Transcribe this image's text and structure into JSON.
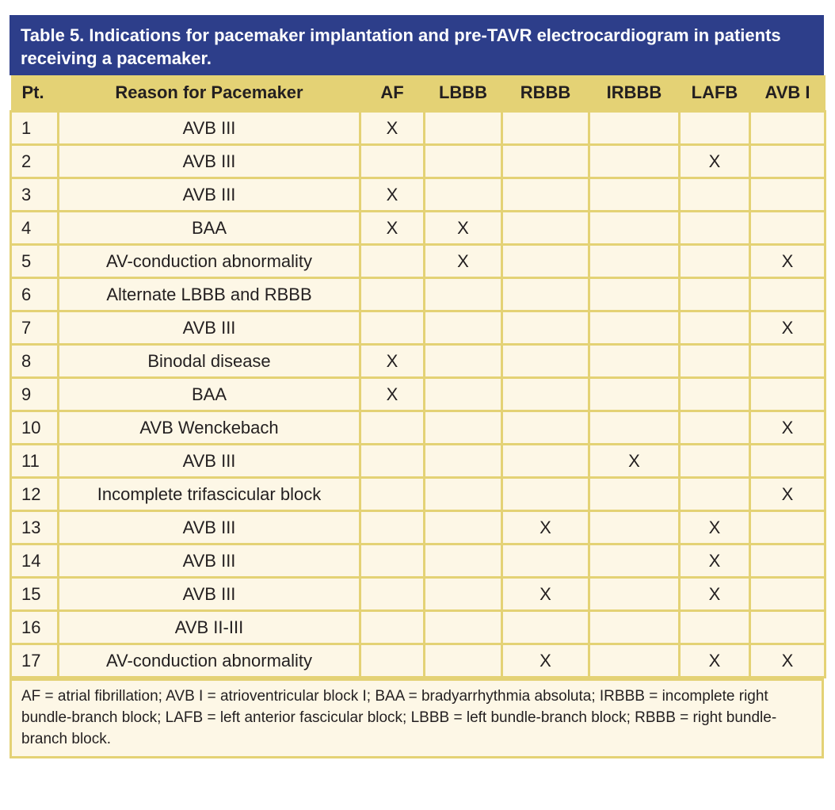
{
  "title": "Table 5. Indications for pacemaker implantation and pre-TAVR electrocardiogram in patients receiving a pacemaker.",
  "columns": [
    "Pt.",
    "Reason for Pacemaker",
    "AF",
    "LBBB",
    "RBBB",
    "IRBBB",
    "LAFB",
    "AVB I"
  ],
  "rows": [
    {
      "pt": "1",
      "reason": "AVB III",
      "af": "X",
      "lbbb": "",
      "rbbb": "",
      "irbbb": "",
      "lafb": "",
      "avb1": ""
    },
    {
      "pt": "2",
      "reason": "AVB III",
      "af": "",
      "lbbb": "",
      "rbbb": "",
      "irbbb": "",
      "lafb": "X",
      "avb1": ""
    },
    {
      "pt": "3",
      "reason": "AVB III",
      "af": "X",
      "lbbb": "",
      "rbbb": "",
      "irbbb": "",
      "lafb": "",
      "avb1": ""
    },
    {
      "pt": "4",
      "reason": "BAA",
      "af": "X",
      "lbbb": "X",
      "rbbb": "",
      "irbbb": "",
      "lafb": "",
      "avb1": ""
    },
    {
      "pt": "5",
      "reason": "AV-conduction abnormality",
      "af": "",
      "lbbb": "X",
      "rbbb": "",
      "irbbb": "",
      "lafb": "",
      "avb1": "X"
    },
    {
      "pt": "6",
      "reason": "Alternate LBBB and RBBB",
      "af": "",
      "lbbb": "",
      "rbbb": "",
      "irbbb": "",
      "lafb": "",
      "avb1": ""
    },
    {
      "pt": "7",
      "reason": "AVB III",
      "af": "",
      "lbbb": "",
      "rbbb": "",
      "irbbb": "",
      "lafb": "",
      "avb1": "X"
    },
    {
      "pt": "8",
      "reason": "Binodal disease",
      "af": "X",
      "lbbb": "",
      "rbbb": "",
      "irbbb": "",
      "lafb": "",
      "avb1": ""
    },
    {
      "pt": "9",
      "reason": "BAA",
      "af": "X",
      "lbbb": "",
      "rbbb": "",
      "irbbb": "",
      "lafb": "",
      "avb1": ""
    },
    {
      "pt": "10",
      "reason": "AVB Wenckebach",
      "af": "",
      "lbbb": "",
      "rbbb": "",
      "irbbb": "",
      "lafb": "",
      "avb1": "X"
    },
    {
      "pt": "11",
      "reason": "AVB III",
      "af": "",
      "lbbb": "",
      "rbbb": "",
      "irbbb": "X",
      "lafb": "",
      "avb1": ""
    },
    {
      "pt": "12",
      "reason": "Incomplete trifascicular block",
      "af": "",
      "lbbb": "",
      "rbbb": "",
      "irbbb": "",
      "lafb": "",
      "avb1": "X"
    },
    {
      "pt": "13",
      "reason": "AVB III",
      "af": "",
      "lbbb": "",
      "rbbb": "X",
      "irbbb": "",
      "lafb": "X",
      "avb1": ""
    },
    {
      "pt": "14",
      "reason": "AVB III",
      "af": "",
      "lbbb": "",
      "rbbb": "",
      "irbbb": "",
      "lafb": "X",
      "avb1": ""
    },
    {
      "pt": "15",
      "reason": "AVB III",
      "af": "",
      "lbbb": "",
      "rbbb": "X",
      "irbbb": "",
      "lafb": "X",
      "avb1": ""
    },
    {
      "pt": "16",
      "reason": "AVB II-III",
      "af": "",
      "lbbb": "",
      "rbbb": "",
      "irbbb": "",
      "lafb": "",
      "avb1": ""
    },
    {
      "pt": "17",
      "reason": "AV-conduction abnormality",
      "af": "",
      "lbbb": "",
      "rbbb": "X",
      "irbbb": "",
      "lafb": "X",
      "avb1": "X"
    }
  ],
  "footnote": "AF = atrial fibrillation; AVB I = atrioventricular block I; BAA = bradyarrhythmia absoluta; IRBBB = incomplete right bundle-branch block; LAFB = left anterior fascicular block; LBBB = left bundle-branch block; RBBB = right bundle-branch block.",
  "colors": {
    "title_bg": "#2d3e8a",
    "header_bg": "#e4d275",
    "cell_bg": "#fdf7e6",
    "grid": "#e4d275"
  }
}
